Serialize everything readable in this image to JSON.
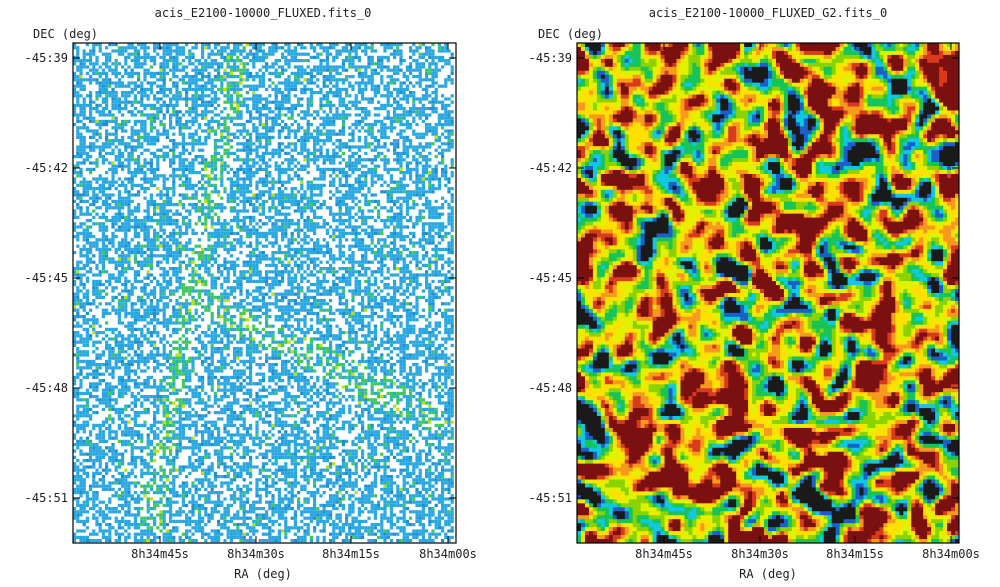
{
  "chart_data": [
    {
      "type": "heatmap",
      "title": "acis_E2100-10000_FLUXED.fits_0",
      "xlabel": "RA (deg)",
      "ylabel": "DEC (deg)",
      "x_ticks": [
        "8h34m45s",
        "8h34m30s",
        "8h34m15s",
        "8h34m00s"
      ],
      "y_ticks": [
        "-45:39",
        "-45:42",
        "-45:45",
        "-45:48",
        "-45:51"
      ],
      "colormap": [
        "#ffffff",
        "#29a7e0",
        "#1f8fd0",
        "#3fc95a",
        "#b7e400",
        "#e07020",
        "#c0302a"
      ],
      "texture": "binned-speckle",
      "features": [
        {
          "kind": "diagonal-streak",
          "from": [
            0.42,
            0.05
          ],
          "to": [
            0.2,
            0.95
          ]
        },
        {
          "kind": "diagonal-streak",
          "from": [
            0.3,
            0.5
          ],
          "to": [
            0.95,
            0.75
          ]
        }
      ]
    },
    {
      "type": "heatmap",
      "title": "acis_E2100-10000_FLUXED_G2.fits_0",
      "xlabel": "RA (deg)",
      "ylabel": "DEC (deg)",
      "x_ticks": [
        "8h34m45s",
        "8h34m30s",
        "8h34m15s",
        "8h34m00s"
      ],
      "y_ticks": [
        "-45:39",
        "-45:42",
        "-45:45",
        "-45:48",
        "-45:51"
      ],
      "colormap": [
        "#1a1a1a",
        "#1b5fc8",
        "#10c8e0",
        "#16c45a",
        "#8ad200",
        "#dff200",
        "#ffe000",
        "#f59a1e",
        "#d83a1c",
        "#7a1010"
      ],
      "texture": "smoothed-noise",
      "hotspots": [
        {
          "fx": 0.985,
          "fy": 0.965,
          "strength": 3.2
        },
        {
          "fx": 0.43,
          "fy": 0.32,
          "strength": -2.2
        },
        {
          "fx": 0.41,
          "fy": 0.46,
          "strength": -2.0
        },
        {
          "fx": 0.66,
          "fy": 0.44,
          "strength": -1.6
        }
      ]
    }
  ]
}
